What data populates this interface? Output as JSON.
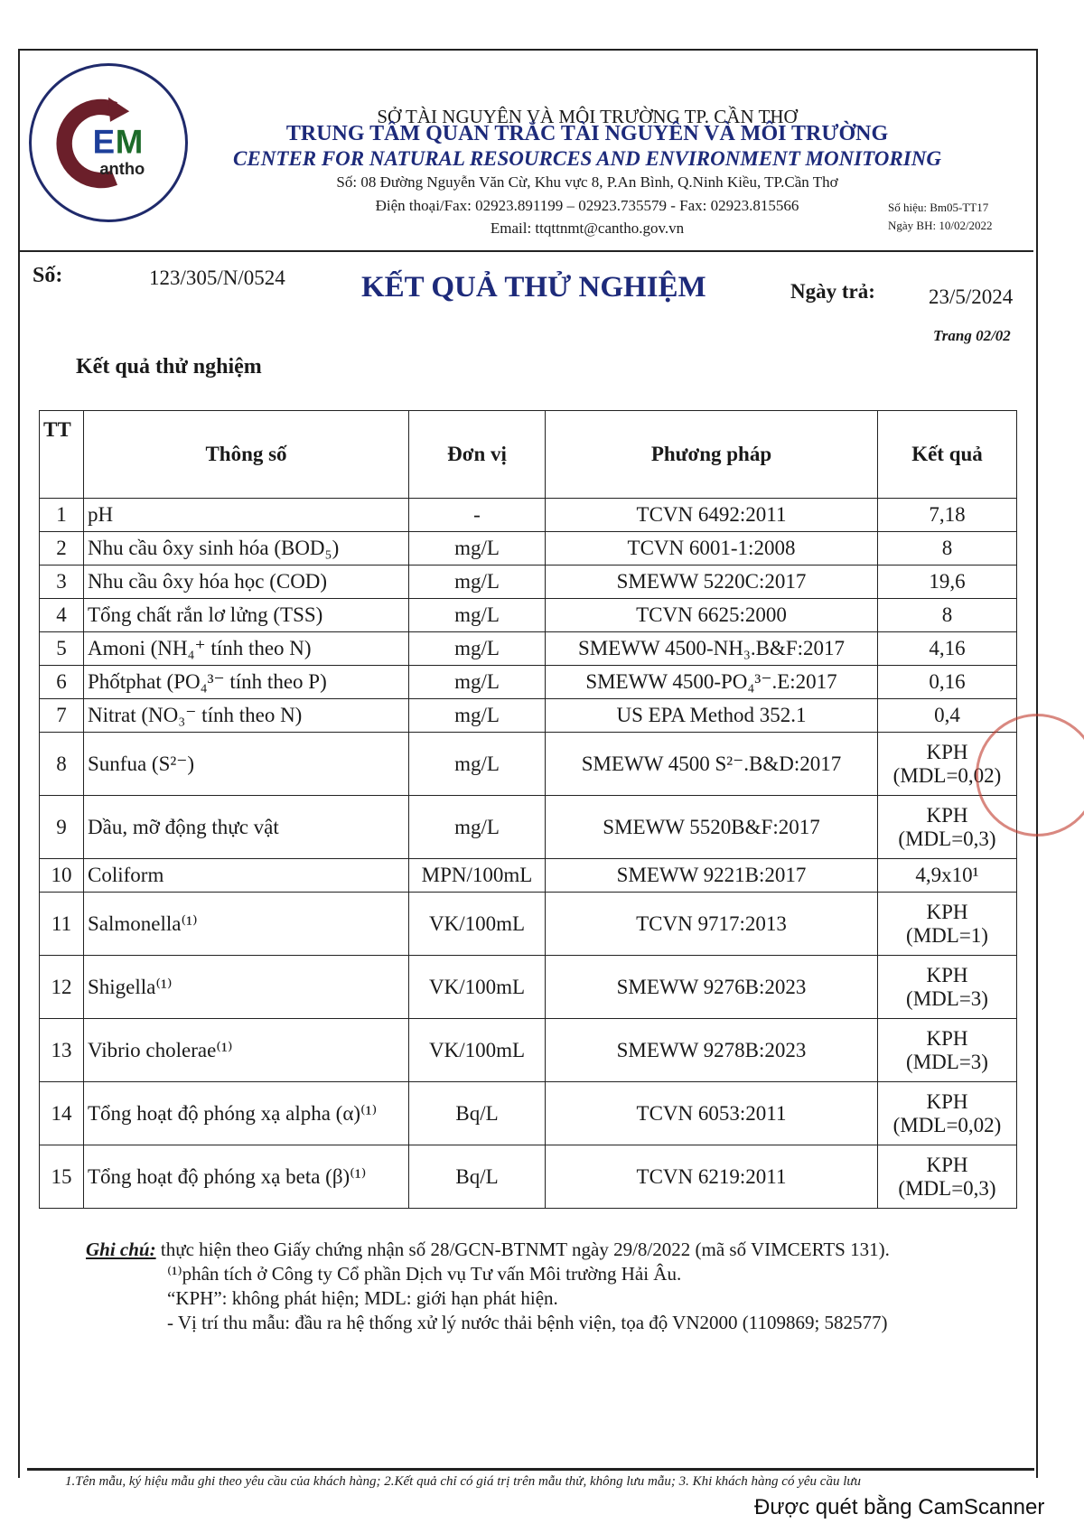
{
  "header": {
    "logo_text": "CEM Cantho",
    "dept": "SỞ TÀI NGUYÊN VÀ MÔI TRƯỜNG TP. CẦN THƠ",
    "org_vi": "TRUNG TÂM QUAN TRẮC TÀI NGUYÊN VÀ MÔI TRƯỜNG",
    "org_en": "CENTER FOR NATURAL RESOURCES AND ENVIRONMENT MONITORING",
    "address": "Số: 08 Đường Nguyễn Văn Cừ, Khu vực 8, P.An Bình, Q.Ninh Kiều, TP.Cần Thơ",
    "phone": "Điện thoại/Fax: 02923.891199 – 02923.735579  - Fax: 02923.815566",
    "email": "Email: ttqttnmt@cantho.gov.vn",
    "form_code": "Số hiệu: Bm05-TT17",
    "form_date": "Ngày BH: 10/02/2022"
  },
  "doc": {
    "so_label": "Số:",
    "so_value": "123/305/N/0524",
    "title": "KẾT QUẢ THỬ NGHIỆM",
    "ngay_label": "Ngày trả:",
    "ngay_value": "23/5/2024",
    "page": "Trang 02/02",
    "section": "Kết quả thử nghiệm"
  },
  "table": {
    "headers": [
      "TT",
      "Thông số",
      "Đơn vị",
      "Phương pháp",
      "Kết quả"
    ],
    "rows": [
      {
        "tt": "1",
        "param": "pH",
        "unit": "-",
        "method": "TCVN 6492:2011",
        "result": "7,18",
        "result2": ""
      },
      {
        "tt": "2",
        "param": "Nhu cầu ôxy sinh hóa (BOD₅)",
        "unit": "mg/L",
        "method": "TCVN 6001-1:2008",
        "result": "8",
        "result2": ""
      },
      {
        "tt": "3",
        "param": "Nhu cầu ôxy hóa học (COD)",
        "unit": "mg/L",
        "method": "SMEWW 5220C:2017",
        "result": "19,6",
        "result2": ""
      },
      {
        "tt": "4",
        "param": "Tổng chất rắn lơ lửng (TSS)",
        "unit": "mg/L",
        "method": "TCVN 6625:2000",
        "result": "8",
        "result2": ""
      },
      {
        "tt": "5",
        "param": "Amoni (NH₄⁺ tính theo N)",
        "unit": "mg/L",
        "method": "SMEWW 4500-NH₃.B&F:2017",
        "result": "4,16",
        "result2": ""
      },
      {
        "tt": "6",
        "param": "Phốtphat (PO₄³⁻ tính theo P)",
        "unit": "mg/L",
        "method": "SMEWW 4500-PO₄³⁻.E:2017",
        "result": "0,16",
        "result2": ""
      },
      {
        "tt": "7",
        "param": "Nitrat (NO₃⁻ tính theo N)",
        "unit": "mg/L",
        "method": "US EPA Method 352.1",
        "result": "0,4",
        "result2": ""
      },
      {
        "tt": "8",
        "param": "Sunfua (S²⁻)",
        "unit": "mg/L",
        "method": "SMEWW 4500 S²⁻.B&D:2017",
        "result": "KPH",
        "result2": "(MDL=0,02)"
      },
      {
        "tt": "9",
        "param": "Dầu, mỡ động thực vật",
        "unit": "mg/L",
        "method": "SMEWW 5520B&F:2017",
        "result": "KPH",
        "result2": "(MDL=0,3)"
      },
      {
        "tt": "10",
        "param": "Coliform",
        "unit": "MPN/100mL",
        "method": "SMEWW 9221B:2017",
        "result": "4,9x10¹",
        "result2": ""
      },
      {
        "tt": "11",
        "param": "Salmonella⁽¹⁾",
        "unit": "VK/100mL",
        "method": "TCVN 9717:2013",
        "result": "KPH",
        "result2": "(MDL=1)"
      },
      {
        "tt": "12",
        "param": "Shigella⁽¹⁾",
        "unit": "VK/100mL",
        "method": "SMEWW 9276B:2023",
        "result": "KPH",
        "result2": "(MDL=3)"
      },
      {
        "tt": "13",
        "param": "Vibrio cholerae⁽¹⁾",
        "unit": "VK/100mL",
        "method": "SMEWW 9278B:2023",
        "result": "KPH",
        "result2": "(MDL=3)"
      },
      {
        "tt": "14",
        "param": "Tổng hoạt độ phóng xạ alpha (α)⁽¹⁾",
        "unit": "Bq/L",
        "method": "TCVN 6053:2011",
        "result": "KPH",
        "result2": "(MDL=0,02)"
      },
      {
        "tt": "15",
        "param": "Tổng hoạt độ phóng xạ beta (β)⁽¹⁾",
        "unit": "Bq/L",
        "method": "TCVN 6219:2011",
        "result": "KPH",
        "result2": "(MDL=0,3)"
      }
    ]
  },
  "notes": {
    "label": "Ghi chú:",
    "line1": " thực hiện theo Giấy chứng nhận số 28/GCN-BTNMT ngày 29/8/2022 (mã số VIMCERTS 131).",
    "line2": "⁽¹⁾phân tích ở Công ty Cổ phần Dịch vụ Tư vấn Môi trường Hải Âu.",
    "line3": "“KPH”: không phát hiện; MDL: giới hạn phát hiện.",
    "line4": "- Vị trí thu mẫu: đầu ra hệ thống xử lý nước thải bệnh viện, tọa độ VN2000 (1109869; 582577)"
  },
  "footer": {
    "text": "1.Tên mẫu, ký hiệu mẫu ghi theo yêu cầu của khách hàng; 2.Kết quả chỉ có giá trị trên mẫu thử, không lưu mẫu; 3. Khi khách hàng có yêu cầu lưu",
    "scanner": "Được quét bằng CamScanner"
  },
  "colors": {
    "brand_blue": "#1d2a7a",
    "logo_maroon": "#6b1f2a",
    "logo_green": "#1d6b2a",
    "stamp_red": "#c0392b"
  }
}
